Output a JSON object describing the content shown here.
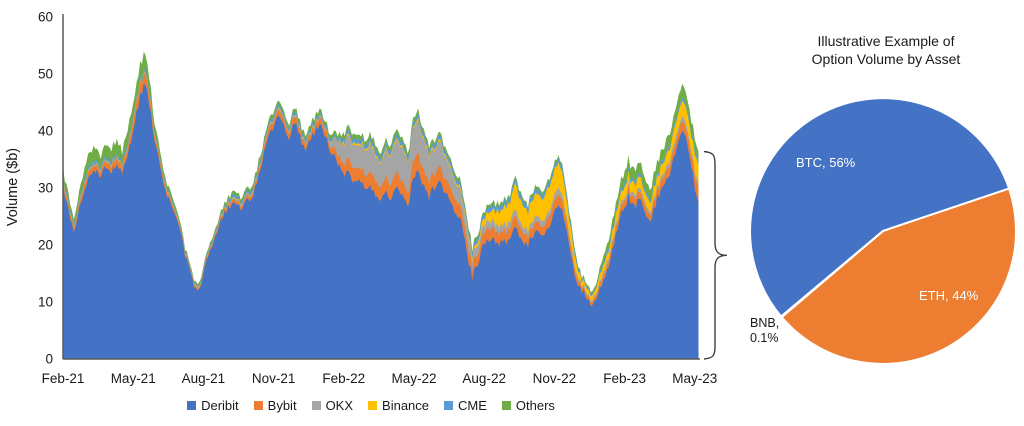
{
  "chart_data": [
    {
      "type": "area",
      "stacked": true,
      "ylabel": "Volume ($b)",
      "ylim": [
        0,
        60
      ],
      "yticks": [
        0,
        10,
        20,
        30,
        40,
        50,
        60
      ],
      "x_tick_labels": [
        "Feb-21",
        "May-21",
        "Aug-21",
        "Nov-21",
        "Feb-22",
        "May-22",
        "Aug-22",
        "Nov-22",
        "Feb-23",
        "May-23"
      ],
      "x_resolution": "weekly",
      "x_range": "Feb-2021 to May-2023",
      "grid": false,
      "legend_position": "bottom",
      "axis_color": "#595959",
      "series": [
        {
          "name": "Deribit",
          "color": "#4472C4",
          "values": [
            30.5,
            26,
            22,
            27,
            30,
            32.5,
            33.5,
            32,
            33.5,
            33,
            34.5,
            32,
            36,
            40,
            44.5,
            48.5,
            45,
            38,
            34,
            30,
            27,
            24.5,
            21,
            17,
            14,
            11.8,
            14.5,
            18,
            21,
            23.5,
            25.5,
            26.5,
            27.5,
            26.5,
            27.5,
            28,
            31,
            35,
            38.5,
            40.5,
            42,
            41,
            39,
            41.5,
            39,
            36.5,
            38.5,
            40.5,
            40.5,
            38.5,
            36,
            34.5,
            32.5,
            33,
            31,
            31.5,
            30.5,
            30,
            29,
            28,
            29,
            28.5,
            29.5,
            28.5,
            26.5,
            31.5,
            32.5,
            30,
            28.5,
            30,
            31,
            29,
            28,
            25.5,
            24,
            18.5,
            14.5,
            17,
            19.5,
            20.5,
            21,
            20,
            21,
            20.5,
            23.5,
            21,
            20,
            21,
            22.5,
            21.5,
            23,
            25.5,
            27.5,
            25,
            19.5,
            15,
            12.5,
            11.5,
            9.8,
            10.8,
            12.5,
            15.5,
            19.5,
            23.5,
            26.5,
            28.5,
            26.5,
            28,
            26,
            24.5,
            27,
            30,
            32,
            33.5,
            37,
            40.5,
            37.5,
            32,
            27.5
          ]
        },
        {
          "name": "Bybit",
          "color": "#ED7D31",
          "values": [
            0.9,
            0.7,
            0.6,
            0.8,
            1.0,
            1.1,
            0.9,
            0.8,
            1.0,
            1.0,
            1.2,
            0.9,
            1.2,
            1.6,
            1.8,
            1.8,
            1.5,
            1.0,
            0.8,
            0.7,
            0.6,
            0.5,
            0.4,
            0.3,
            0.25,
            0.25,
            0.3,
            0.35,
            0.4,
            0.45,
            0.5,
            0.5,
            0.55,
            0.5,
            0.55,
            0.6,
            0.7,
            0.8,
            0.9,
            1.0,
            1.1,
            1.0,
            0.9,
            1.0,
            0.9,
            0.85,
            0.9,
            1.0,
            1.0,
            0.95,
            1.2,
            1.5,
            1.8,
            2.2,
            2.4,
            2.2,
            2.4,
            2.6,
            2.5,
            2.3,
            2.5,
            2.6,
            2.8,
            2.6,
            2.4,
            2.9,
            3.0,
            2.7,
            2.5,
            2.6,
            2.8,
            2.5,
            2.3,
            2.2,
            2.2,
            2.0,
            1.8,
            1.9,
            1.8,
            1.9,
            2.0,
            1.8,
            1.9,
            1.8,
            1.9,
            1.7,
            1.6,
            1.6,
            1.7,
            1.6,
            1.7,
            1.8,
            1.9,
            1.7,
            1.4,
            1.1,
            0.7,
            0.6,
            0.55,
            0.6,
            0.8,
            0.9,
            1.0,
            1.1,
            1.2,
            1.3,
            1.2,
            1.3,
            1.2,
            1.1,
            1.3,
            1.4,
            1.5,
            1.5,
            1.6,
            1.7,
            1.8,
            2.2,
            2.6
          ]
        },
        {
          "name": "OKX",
          "color": "#A5A5A5",
          "values": [
            0.25,
            0.2,
            0.2,
            0.25,
            0.3,
            0.25,
            0.25,
            0.3,
            0.25,
            0.3,
            0.25,
            0.25,
            0.3,
            0.3,
            0.35,
            0.3,
            0.3,
            0.25,
            0.25,
            0.2,
            0.2,
            0.2,
            0.15,
            0.15,
            0.15,
            0.15,
            0.15,
            0.15,
            0.15,
            0.15,
            0.15,
            0.3,
            0.3,
            0.3,
            0.3,
            0.3,
            0.3,
            0.3,
            0.3,
            0.3,
            0.35,
            0.3,
            0.3,
            0.3,
            0.3,
            0.3,
            0.3,
            0.3,
            0.3,
            0.3,
            1.2,
            2.2,
            3.2,
            3.8,
            4.2,
            4.0,
            4.4,
            4.8,
            4.5,
            4.2,
            4.6,
            5.0,
            5.4,
            5.8,
            5.2,
            5.6,
            6.0,
            5.2,
            4.6,
            4.2,
            4.4,
            3.8,
            3.4,
            3.0,
            2.6,
            2.2,
            1.6,
            1.5,
            1.3,
            1.3,
            1.2,
            1.2,
            1.2,
            1.2,
            1.2,
            1.1,
            1.1,
            1.0,
            1.0,
            1.0,
            1.0,
            1.1,
            1.1,
            1.0,
            0.8,
            0.6,
            0.4,
            0.35,
            0.3,
            0.35,
            0.5,
            0.5,
            0.55,
            0.6,
            0.6,
            0.65,
            0.6,
            0.65,
            0.6,
            0.55,
            0.6,
            0.65,
            0.7,
            0.7,
            0.75,
            0.8,
            0.75,
            0.7,
            0.7
          ]
        },
        {
          "name": "Binance",
          "color": "#FFC000",
          "values": [
            0.12,
            0.12,
            0.12,
            0.12,
            0.12,
            0.12,
            0.12,
            0.12,
            0.12,
            0.12,
            0.12,
            0.12,
            0.12,
            0.12,
            0.12,
            0.12,
            0.12,
            0.12,
            0.12,
            0.12,
            0.12,
            0.12,
            0.12,
            0.12,
            0.12,
            0.12,
            0.12,
            0.12,
            0.12,
            0.12,
            0.12,
            0.12,
            0.12,
            0.12,
            0.12,
            0.12,
            0.12,
            0.12,
            0.12,
            0.12,
            0.12,
            0.12,
            0.12,
            0.12,
            0.12,
            0.12,
            0.12,
            0.12,
            0.12,
            0.12,
            0.12,
            0.12,
            0.3,
            0.3,
            0.3,
            0.3,
            0.3,
            0.3,
            0.3,
            0.3,
            0.3,
            0.3,
            0.3,
            0.3,
            0.3,
            0.3,
            0.3,
            0.3,
            0.3,
            0.3,
            0.3,
            0.3,
            0.3,
            0.3,
            0.4,
            0.5,
            0.4,
            0.6,
            1.0,
            1.5,
            2.0,
            2.5,
            3.0,
            3.5,
            4.5,
            3.8,
            3.4,
            3.6,
            4.0,
            3.8,
            4.2,
            4.4,
            4.2,
            3.6,
            2.6,
            1.8,
            1.0,
            0.9,
            0.8,
            0.9,
            1.2,
            1.4,
            1.6,
            1.8,
            1.8,
            1.9,
            1.8,
            1.9,
            1.7,
            1.6,
            1.8,
            2.0,
            2.2,
            2.4,
            2.6,
            2.8,
            2.6,
            3.0,
            3.2
          ]
        },
        {
          "name": "CME",
          "color": "#5B9BD5",
          "values": [
            0.5,
            0.5,
            0.5,
            0.5,
            0.5,
            0.5,
            0.5,
            0.5,
            0.5,
            0.5,
            0.5,
            0.5,
            0.5,
            0.5,
            0.5,
            0.5,
            0.5,
            0.25,
            0.25,
            0.25,
            0.25,
            0.25,
            0.25,
            0.25,
            0.25,
            0.25,
            0.25,
            0.25,
            0.25,
            0.25,
            0.25,
            0.5,
            0.5,
            0.5,
            0.5,
            0.5,
            0.5,
            0.5,
            0.5,
            0.5,
            0.5,
            0.5,
            0.5,
            0.5,
            0.5,
            0.5,
            0.5,
            0.5,
            0.5,
            0.5,
            0.5,
            0.5,
            0.7,
            0.7,
            0.7,
            0.7,
            0.7,
            0.7,
            0.7,
            0.7,
            0.7,
            0.7,
            0.7,
            0.7,
            0.7,
            0.7,
            0.7,
            0.7,
            0.7,
            0.7,
            0.7,
            0.7,
            0.7,
            0.7,
            0.7,
            0.7,
            0.7,
            0.7,
            0.8,
            0.8,
            0.8,
            0.8,
            0.8,
            0.8,
            0.8,
            0.8,
            0.8,
            0.8,
            0.8,
            0.8,
            0.8,
            0.8,
            0.8,
            0.8,
            0.8,
            0.8,
            0.3,
            0.3,
            0.3,
            0.3,
            0.6,
            0.6,
            0.6,
            0.6,
            0.6,
            0.6,
            0.6,
            0.6,
            0.6,
            0.6,
            0.6,
            0.6,
            0.6,
            0.6,
            0.6,
            0.6,
            0.6,
            0.6,
            0.6
          ]
        },
        {
          "name": "Others",
          "color": "#70AD47",
          "values": [
            1.3,
            1.1,
            1.0,
            1.4,
            2.0,
            2.3,
            2.2,
            1.9,
            2.1,
            2.2,
            2.4,
            2.0,
            2.2,
            2.5,
            2.7,
            2.6,
            2.3,
            1.5,
            1.2,
            1.0,
            0.8,
            0.7,
            0.5,
            0.4,
            0.35,
            0.35,
            0.4,
            0.45,
            0.5,
            0.55,
            0.6,
            0.6,
            0.6,
            0.55,
            0.6,
            0.6,
            0.65,
            0.7,
            0.75,
            0.7,
            0.7,
            0.7,
            0.7,
            0.7,
            0.7,
            0.7,
            0.7,
            0.7,
            0.7,
            0.7,
            0.7,
            0.7,
            0.8,
            0.8,
            0.8,
            0.8,
            0.8,
            0.8,
            0.8,
            0.8,
            0.8,
            0.8,
            0.8,
            0.8,
            0.8,
            0.8,
            0.8,
            0.8,
            0.8,
            0.6,
            0.6,
            0.6,
            0.6,
            0.6,
            0.6,
            0.6,
            0.6,
            0.6,
            0.5,
            0.5,
            0.5,
            0.5,
            0.5,
            0.5,
            0.5,
            0.5,
            0.5,
            0.5,
            0.5,
            0.5,
            0.5,
            0.5,
            0.5,
            0.5,
            0.5,
            0.5,
            0.4,
            0.4,
            0.4,
            0.4,
            0.9,
            1.1,
            1.3,
            1.5,
            1.8,
            2.0,
            1.9,
            2.0,
            1.8,
            1.7,
            1.9,
            2.0,
            2.1,
            2.0,
            2.1,
            2.2,
            2.0,
            1.9,
            1.8
          ]
        }
      ],
      "annotation": {
        "type": "right-curly-brace",
        "y_from": 0,
        "y_to": 36.4
      }
    },
    {
      "type": "pie",
      "title": "Illustrative Example of\nOption Volume by Asset",
      "start_angle_deg": 230,
      "slices": [
        {
          "label": "BTC",
          "pct": 56,
          "display": "BTC, 56%",
          "color": "#4472C4"
        },
        {
          "label": "ETH",
          "pct": 44,
          "display": "ETH, 44%",
          "color": "#ED7D31"
        },
        {
          "label": "BNB",
          "pct": 0.1,
          "display": "BNB,\n0.1%",
          "color": "#A5A5A5"
        }
      ]
    }
  ],
  "legend": {
    "items": [
      {
        "label": "Deribit",
        "color": "#4472C4"
      },
      {
        "label": "Bybit",
        "color": "#ED7D31"
      },
      {
        "label": "OKX",
        "color": "#A5A5A5"
      },
      {
        "label": "Binance",
        "color": "#FFC000"
      },
      {
        "label": "CME",
        "color": "#5B9BD5"
      },
      {
        "label": "Others",
        "color": "#70AD47"
      }
    ]
  }
}
